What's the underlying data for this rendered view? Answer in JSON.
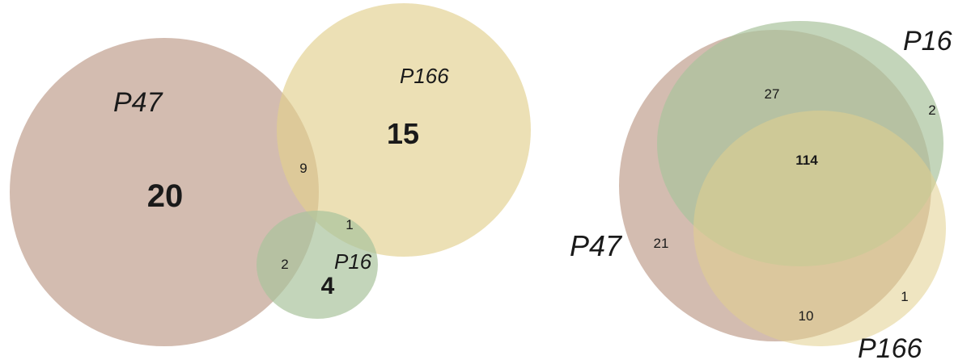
{
  "diagrams": [
    {
      "sets": [
        {
          "name": "P47",
          "color": "#c4a596"
        },
        {
          "name": "P166",
          "color": "#e2cf8e"
        },
        {
          "name": "P16",
          "color": "#a9c39d"
        }
      ],
      "regions": {
        "p47_only": "20",
        "p166_only": "15",
        "p47_p166": "9",
        "p166_p16": "1",
        "p47_p16": "2",
        "p16_only": "4"
      }
    },
    {
      "sets": [
        {
          "name": "P47",
          "color": "#c4a596"
        },
        {
          "name": "P16",
          "color": "#a9c39d"
        },
        {
          "name": "P166",
          "color": "#e2cf8e"
        }
      ],
      "regions": {
        "p47_p16": "27",
        "p16_only": "2",
        "all_three": "114",
        "p47_only": "21",
        "p166_only": "1",
        "p47_p166": "10"
      }
    }
  ]
}
